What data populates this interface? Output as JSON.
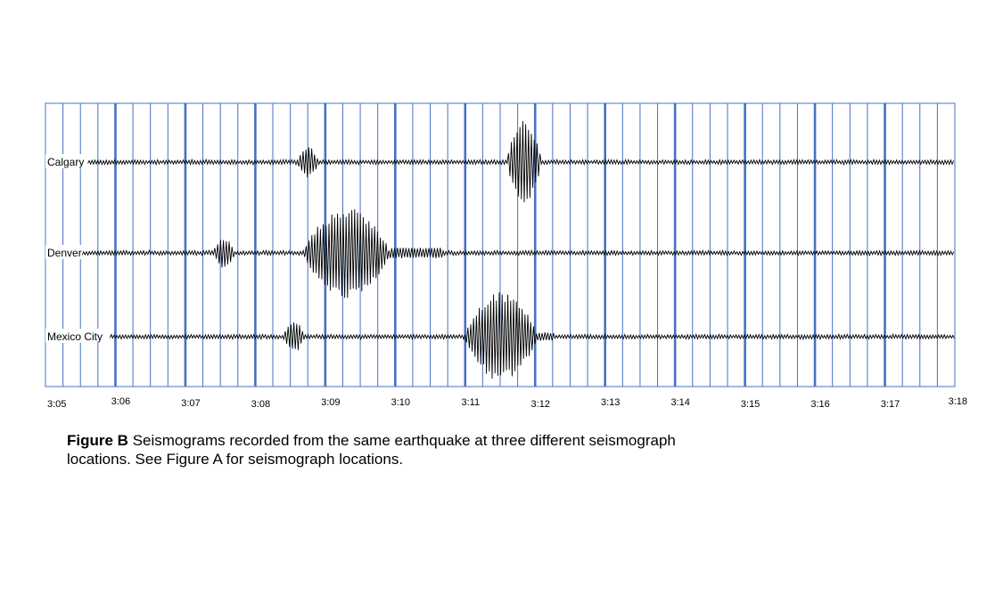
{
  "caption": {
    "label": "Figure B",
    "line1": "Seismograms recorded from the same earthquake at three different seismograph",
    "line2": "locations. See Figure A for seismograph locations."
  },
  "colors": {
    "grid": "#4472c4",
    "trace": "#000000",
    "background": "#ffffff"
  },
  "chart_data": {
    "type": "line",
    "x_unit": "time",
    "time_range": [
      "3:05",
      "3:18"
    ],
    "ticks": [
      "3:05",
      "3:06",
      "3:07",
      "3:08",
      "3:09",
      "3:10",
      "3:11",
      "3:12",
      "3:13",
      "3:14",
      "3:15",
      "3:16",
      "3:17",
      "3:18"
    ],
    "grid": {
      "major_every_minute": true,
      "minor_per_minute": 3
    },
    "stations": [
      {
        "name": "Calgary",
        "p_wave_arrival": "3:08.6",
        "s_wave_arrival": "3:11.6",
        "baseline": "trace",
        "p_amplitude": "small",
        "s_amplitude": "large"
      },
      {
        "name": "Denver",
        "p_wave_arrival": "3:07.4",
        "s_wave_arrival": "3:08.7",
        "baseline": "trace",
        "p_amplitude": "small",
        "s_amplitude": "large"
      },
      {
        "name": "Mexico City",
        "p_wave_arrival": "3:08.4",
        "s_wave_arrival": "3:11.0",
        "baseline": "trace",
        "p_amplitude": "small",
        "s_amplitude": "large"
      }
    ]
  }
}
